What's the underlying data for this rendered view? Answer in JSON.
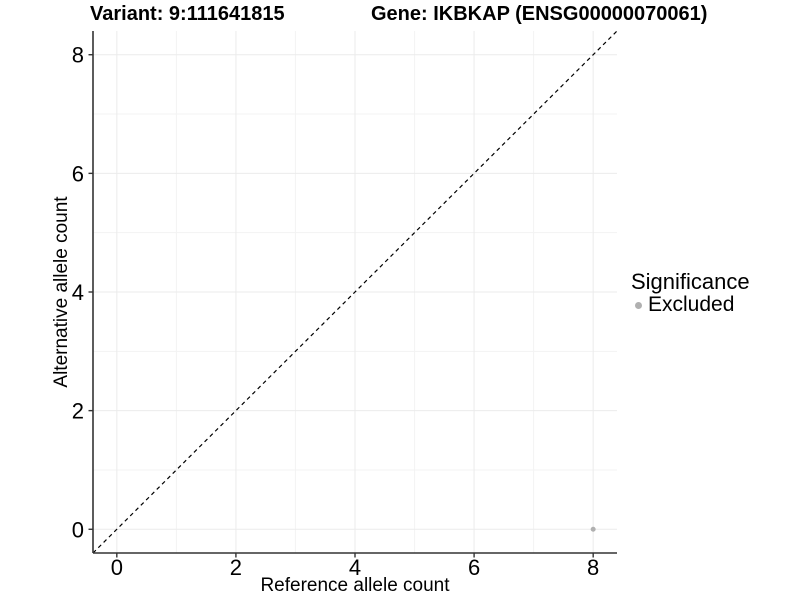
{
  "chart_data": {
    "type": "scatter",
    "title_left": "Variant: 9:111641815",
    "title_right": "Gene: IKBKAP (ENSG00000070061)",
    "xlabel": "Reference allele count",
    "ylabel": "Alternative allele count",
    "xlim": [
      -0.4,
      8.4
    ],
    "ylim": [
      -0.4,
      8.4
    ],
    "xticks": [
      0,
      2,
      4,
      6,
      8
    ],
    "yticks": [
      0,
      2,
      4,
      6,
      8
    ],
    "xminor": [
      1,
      3,
      5,
      7
    ],
    "yminor": [
      1,
      3,
      5,
      7
    ],
    "grid": "major+minor",
    "identity_line": {
      "style": "dashed",
      "slope": 1,
      "intercept": 0
    },
    "series": [
      {
        "name": "Excluded",
        "color": "#b0b0b0",
        "points": [
          [
            8,
            0
          ]
        ]
      }
    ],
    "legend": {
      "title": "Significance",
      "position": "right",
      "items": [
        {
          "label": "Excluded",
          "color": "#b0b0b0"
        }
      ]
    },
    "colors": {
      "axis": "#333333",
      "tick": "#333333",
      "grid_major": "#ebebeb",
      "grid_minor": "#f3f3f3",
      "identity_line": "#000000",
      "point": "#b0b0b0",
      "background": "#ffffff"
    }
  }
}
